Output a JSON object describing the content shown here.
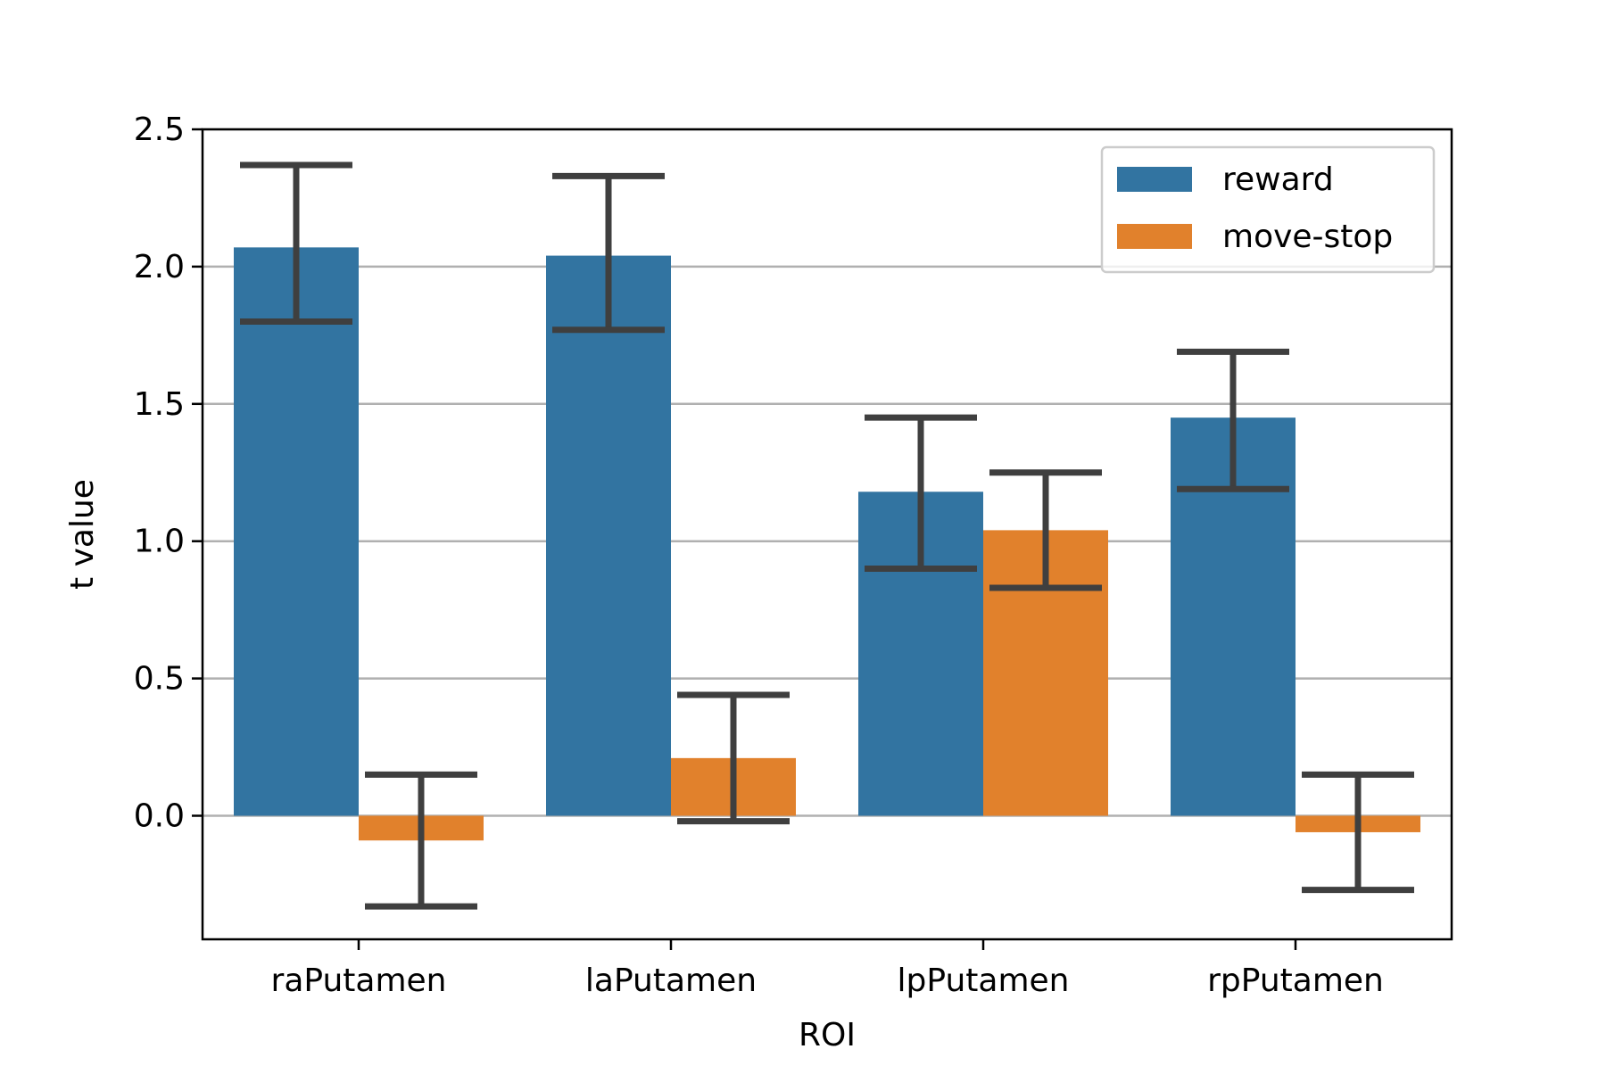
{
  "chart_data": {
    "type": "bar",
    "xlabel": "ROI",
    "ylabel": "t value",
    "categories": [
      "raPutamen",
      "laPutamen",
      "lpPutamen",
      "rpPutamen"
    ],
    "ylim": [
      -0.45,
      2.5
    ],
    "yticks": [
      0.0,
      0.5,
      1.0,
      1.5,
      2.0,
      2.5
    ],
    "ytick_labels": [
      "0.0",
      "0.5",
      "1.0",
      "1.5",
      "2.0",
      "2.5"
    ],
    "grid": "horizontal",
    "legend_position": "top-right",
    "series": [
      {
        "name": "reward",
        "color": "#3274a1",
        "values": [
          2.07,
          2.04,
          1.18,
          1.45
        ],
        "error_low": [
          1.8,
          1.77,
          0.9,
          1.19
        ],
        "error_high": [
          2.37,
          2.33,
          1.45,
          1.69
        ]
      },
      {
        "name": "move-stop",
        "color": "#e1812c",
        "values": [
          -0.09,
          0.21,
          1.04,
          -0.06
        ],
        "error_low": [
          -0.33,
          -0.02,
          0.83,
          -0.27
        ],
        "error_high": [
          0.15,
          0.44,
          1.25,
          0.15
        ]
      }
    ],
    "error_bar_color": "#3f3f3f"
  }
}
